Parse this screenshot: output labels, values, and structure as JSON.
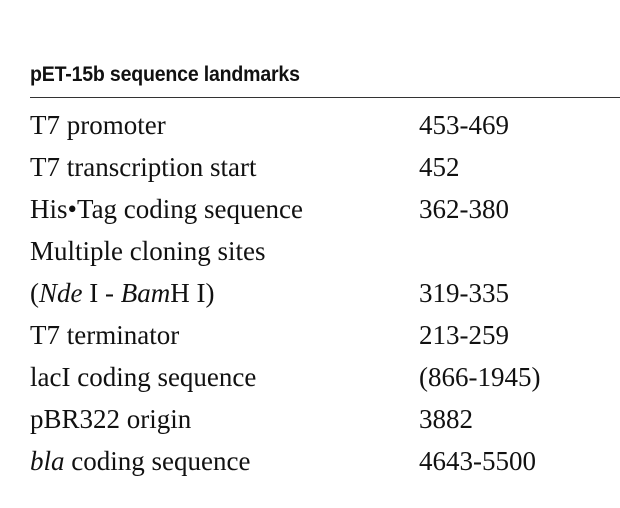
{
  "table": {
    "title": "pET-15b sequence landmarks",
    "rows": [
      {
        "label": "T7 promoter",
        "value": "453-469"
      },
      {
        "label": "T7 transcription start",
        "value": "452"
      },
      {
        "label": "His•Tag coding sequence",
        "value": "362-380"
      },
      {
        "label": "Multiple cloning sites",
        "value": ""
      },
      {
        "label_parts": [
          "(",
          "Nde",
          " I - ",
          "Bam",
          "H I)"
        ],
        "value": "319-335"
      },
      {
        "label": "T7 terminator",
        "value": "213-259"
      },
      {
        "label": "lacI coding sequence",
        "value": "(866-1945)"
      },
      {
        "label": "pBR322 origin",
        "value": "3882"
      },
      {
        "label_parts": [
          "bla",
          " coding sequence"
        ],
        "value": "4643-5500"
      }
    ]
  }
}
